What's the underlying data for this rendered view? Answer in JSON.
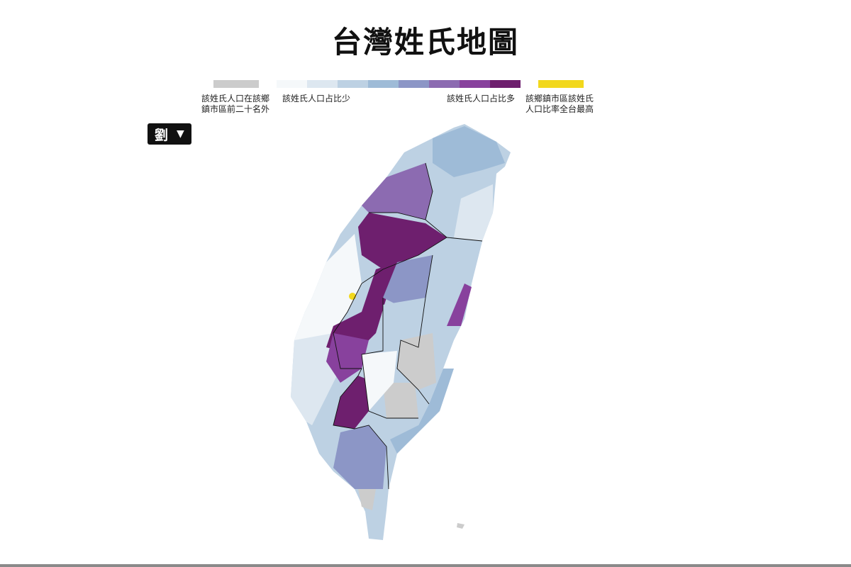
{
  "title": "台灣姓氏地圖",
  "surname_select": {
    "value": "劉",
    "icon": "triangle-down-icon"
  },
  "legend": {
    "not_top20": {
      "label": "該姓氏人口在該鄉鎮市區前二十名外",
      "line1": "該姓氏人口在該鄉",
      "line2": "鎮市區前二十名外",
      "color": "#cccccc"
    },
    "scale": {
      "low_label": "該姓氏人口占比少",
      "high_label": "該姓氏人口占比多",
      "colors": [
        "#f5f8fa",
        "#dde7f0",
        "#bdd1e3",
        "#9ebbd7",
        "#8c96c6",
        "#8c6bb1",
        "#88419d",
        "#6e1f6e"
      ]
    },
    "highest": {
      "label": "該鄉鎮市區該姓氏人口比率全台最高",
      "line1": "該鄉鎮市區該姓氏",
      "line2": "人口比率全台最高",
      "color": "#f2d81c"
    }
  }
}
